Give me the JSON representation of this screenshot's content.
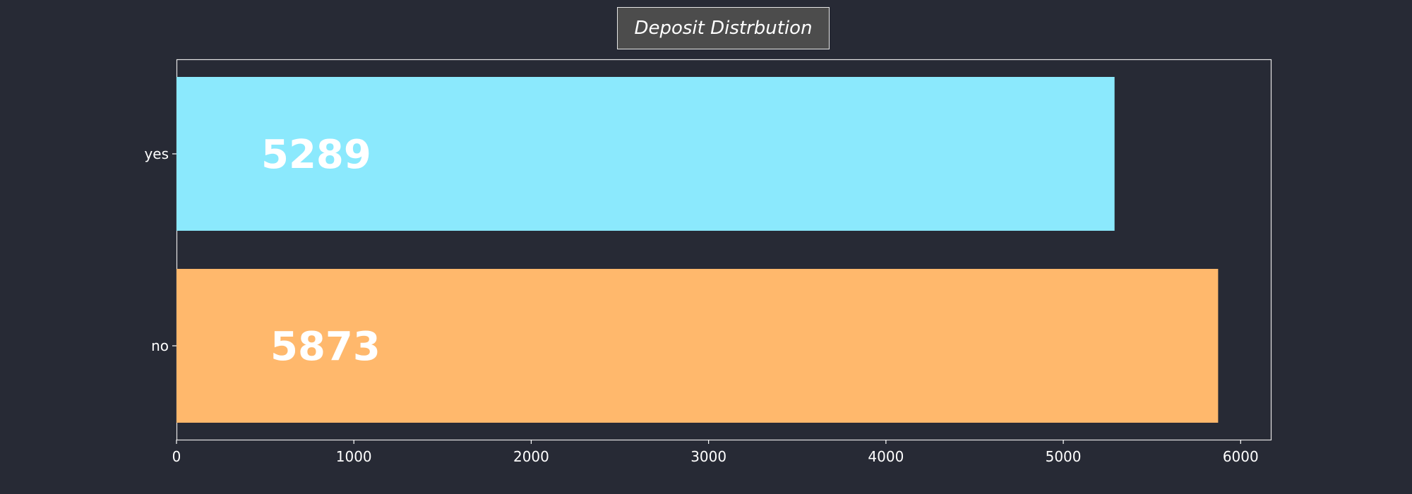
{
  "colors": {
    "background": "#272a35",
    "yes_bar": "#8be9fd",
    "no_bar": "#ffb86c",
    "text": "#ffffff",
    "title_box": "#4c4c4c"
  },
  "chart_data": {
    "type": "bar",
    "orientation": "horizontal",
    "title": "Deposit Distrbution",
    "xlabel": "",
    "ylabel": "",
    "categories": [
      "yes",
      "no"
    ],
    "values": [
      5289,
      5873
    ],
    "data_labels": [
      "5289",
      "5873"
    ],
    "bar_colors": [
      "#8be9fd",
      "#ffb86c"
    ],
    "xlim": [
      0,
      6170
    ],
    "x_ticks": [
      0,
      1000,
      2000,
      3000,
      4000,
      5000,
      6000
    ],
    "grid": false,
    "legend": "none"
  }
}
